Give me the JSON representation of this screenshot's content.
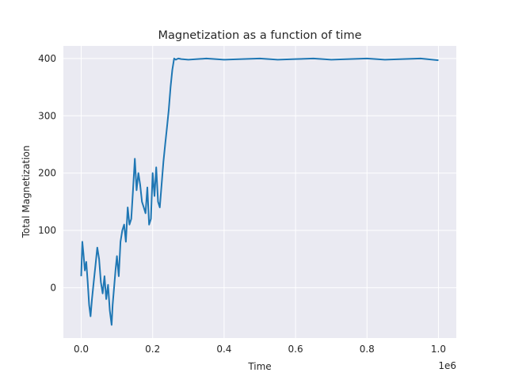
{
  "chart_data": {
    "type": "line",
    "title": "Magnetization as a function of time",
    "xlabel": "Time",
    "ylabel": "Total Magnetization",
    "x_offset_label": "1e6",
    "xlim": [
      -50000,
      1050000
    ],
    "ylim": [
      -88,
      422
    ],
    "x_ticks": [
      0,
      200000,
      400000,
      600000,
      800000,
      1000000
    ],
    "x_tick_labels": [
      "0.0",
      "0.2",
      "0.4",
      "0.6",
      "0.8",
      "1.0"
    ],
    "y_ticks": [
      0,
      100,
      200,
      300,
      400
    ],
    "y_tick_labels": [
      "0",
      "100",
      "200",
      "300",
      "400"
    ],
    "grid": true,
    "background": "#eaeaf2",
    "series": [
      {
        "color": "#1f77b4",
        "x": [
          0,
          3000,
          6000,
          10000,
          14000,
          18000,
          22000,
          26000,
          30000,
          35000,
          40000,
          45000,
          50000,
          55000,
          60000,
          65000,
          70000,
          75000,
          80000,
          85000,
          88000,
          92000,
          96000,
          100000,
          105000,
          110000,
          115000,
          120000,
          125000,
          130000,
          135000,
          140000,
          145000,
          150000,
          155000,
          160000,
          165000,
          170000,
          175000,
          180000,
          185000,
          190000,
          195000,
          200000,
          205000,
          210000,
          215000,
          220000,
          225000,
          230000,
          235000,
          240000,
          245000,
          250000,
          255000,
          260000,
          265000,
          268000,
          272000,
          280000,
          300000,
          350000,
          400000,
          450000,
          500000,
          550000,
          600000,
          650000,
          700000,
          750000,
          800000,
          850000,
          900000,
          950000,
          1000000
        ],
        "y": [
          20,
          80,
          60,
          30,
          45,
          10,
          -30,
          -50,
          -20,
          10,
          40,
          70,
          50,
          10,
          -10,
          20,
          -20,
          5,
          -40,
          -65,
          -30,
          0,
          30,
          55,
          20,
          80,
          100,
          110,
          80,
          140,
          110,
          120,
          170,
          225,
          170,
          200,
          180,
          150,
          140,
          130,
          175,
          110,
          120,
          200,
          160,
          210,
          150,
          140,
          180,
          220,
          250,
          280,
          310,
          350,
          380,
          400,
          398,
          399,
          400,
          399,
          398,
          400,
          398,
          399,
          400,
          398,
          399,
          400,
          398,
          399,
          400,
          398,
          399,
          400,
          397
        ]
      }
    ]
  }
}
